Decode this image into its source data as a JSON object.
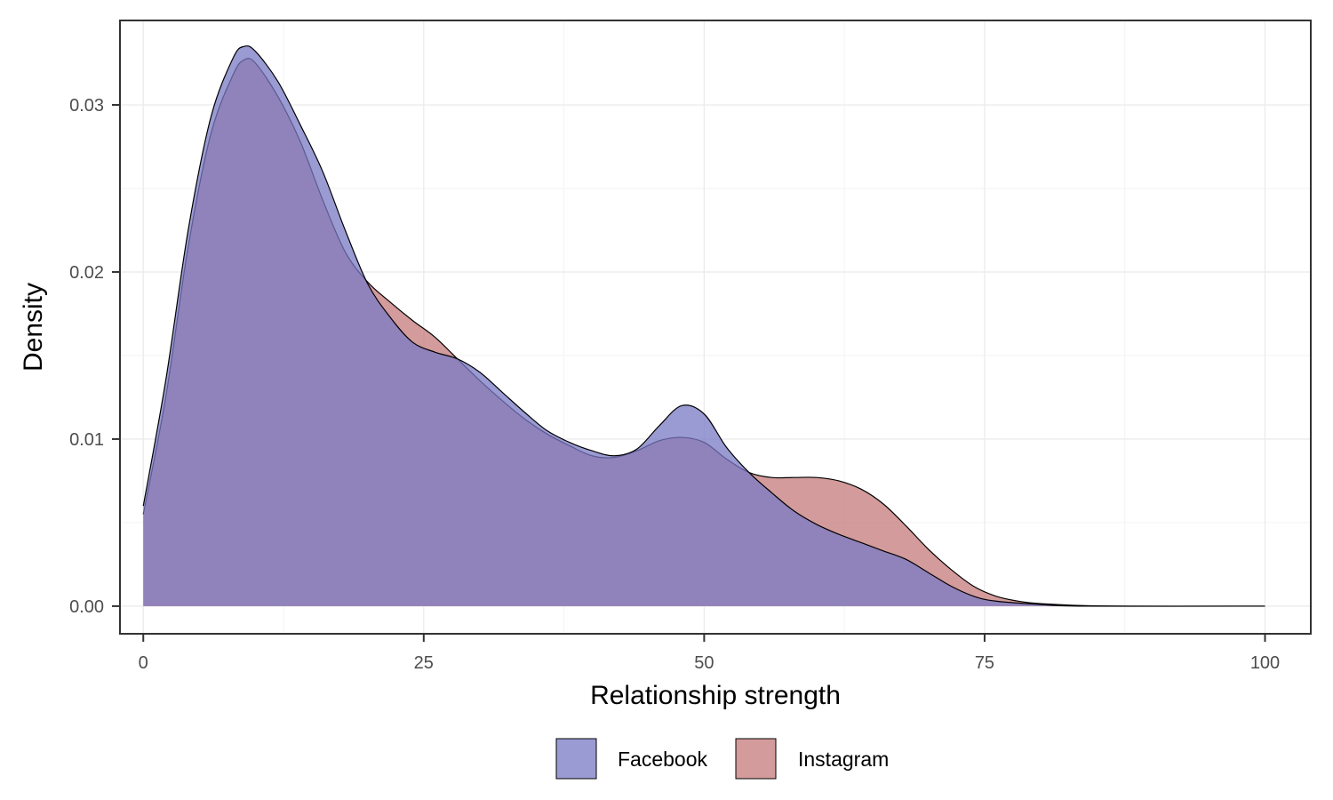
{
  "chart_data": {
    "type": "area",
    "subtype": "density",
    "xlabel": "Relationship strength",
    "ylabel": "Density",
    "xlim": [
      -2,
      104
    ],
    "ylim": [
      -0.0016,
      0.035
    ],
    "x_ticks": [
      0,
      25,
      50,
      75,
      100
    ],
    "x_tick_labels": [
      "0",
      "25",
      "50",
      "75",
      "100"
    ],
    "y_ticks": [
      0,
      0.01,
      0.02,
      0.03
    ],
    "y_tick_labels": [
      "0.00",
      "0.01",
      "0.02",
      "0.03"
    ],
    "grid": true,
    "legend_position": "bottom",
    "series": [
      {
        "name": "Instagram",
        "color": "#c47a7a",
        "points": [
          [
            0,
            0.0055
          ],
          [
            2,
            0.0125
          ],
          [
            4,
            0.0215
          ],
          [
            6,
            0.0282
          ],
          [
            8,
            0.0318
          ],
          [
            9,
            0.0327
          ],
          [
            10,
            0.0325
          ],
          [
            12,
            0.0305
          ],
          [
            14,
            0.0278
          ],
          [
            16,
            0.0243
          ],
          [
            18,
            0.0212
          ],
          [
            20,
            0.0194
          ],
          [
            22,
            0.0182
          ],
          [
            24,
            0.0171
          ],
          [
            26,
            0.0161
          ],
          [
            28,
            0.0148
          ],
          [
            30,
            0.0135
          ],
          [
            32,
            0.0123
          ],
          [
            34,
            0.0112
          ],
          [
            36,
            0.0103
          ],
          [
            38,
            0.0096
          ],
          [
            40,
            0.009
          ],
          [
            42,
            0.0089
          ],
          [
            44,
            0.0093
          ],
          [
            46,
            0.0099
          ],
          [
            48,
            0.0101
          ],
          [
            50,
            0.0098
          ],
          [
            52,
            0.0088
          ],
          [
            54,
            0.008
          ],
          [
            56,
            0.0077
          ],
          [
            58,
            0.0077
          ],
          [
            60,
            0.0077
          ],
          [
            62,
            0.0075
          ],
          [
            64,
            0.007
          ],
          [
            66,
            0.0061
          ],
          [
            68,
            0.0048
          ],
          [
            70,
            0.0034
          ],
          [
            72,
            0.0022
          ],
          [
            74,
            0.0012
          ],
          [
            76,
            0.0006
          ],
          [
            78,
            0.0003
          ],
          [
            80,
            0.00015
          ],
          [
            84,
            3e-05
          ],
          [
            88,
            0.0
          ],
          [
            100,
            0.0
          ]
        ]
      },
      {
        "name": "Facebook",
        "color": "#7a7ac4",
        "points": [
          [
            0,
            0.006
          ],
          [
            2,
            0.0135
          ],
          [
            4,
            0.0225
          ],
          [
            6,
            0.0292
          ],
          [
            8,
            0.0328
          ],
          [
            9,
            0.0335
          ],
          [
            10,
            0.0332
          ],
          [
            12,
            0.0314
          ],
          [
            14,
            0.0288
          ],
          [
            16,
            0.026
          ],
          [
            18,
            0.0225
          ],
          [
            20,
            0.0193
          ],
          [
            22,
            0.0173
          ],
          [
            24,
            0.0158
          ],
          [
            26,
            0.0152
          ],
          [
            28,
            0.0148
          ],
          [
            30,
            0.014
          ],
          [
            32,
            0.0128
          ],
          [
            34,
            0.0116
          ],
          [
            36,
            0.0105
          ],
          [
            38,
            0.0098
          ],
          [
            40,
            0.0093
          ],
          [
            42,
            0.009
          ],
          [
            44,
            0.0094
          ],
          [
            46,
            0.0108
          ],
          [
            48,
            0.012
          ],
          [
            50,
            0.0115
          ],
          [
            52,
            0.0095
          ],
          [
            54,
            0.008
          ],
          [
            56,
            0.0068
          ],
          [
            58,
            0.0057
          ],
          [
            60,
            0.0049
          ],
          [
            62,
            0.0043
          ],
          [
            64,
            0.0038
          ],
          [
            66,
            0.0033
          ],
          [
            68,
            0.0028
          ],
          [
            70,
            0.002
          ],
          [
            72,
            0.0012
          ],
          [
            74,
            0.0006
          ],
          [
            76,
            0.0003
          ],
          [
            80,
            0.0001
          ],
          [
            84,
            0.0
          ],
          [
            100,
            0.0
          ]
        ]
      }
    ],
    "legend": [
      {
        "label": "Facebook",
        "color": "#7a7ac4"
      },
      {
        "label": "Instagram",
        "color": "#c47a7a"
      }
    ]
  }
}
